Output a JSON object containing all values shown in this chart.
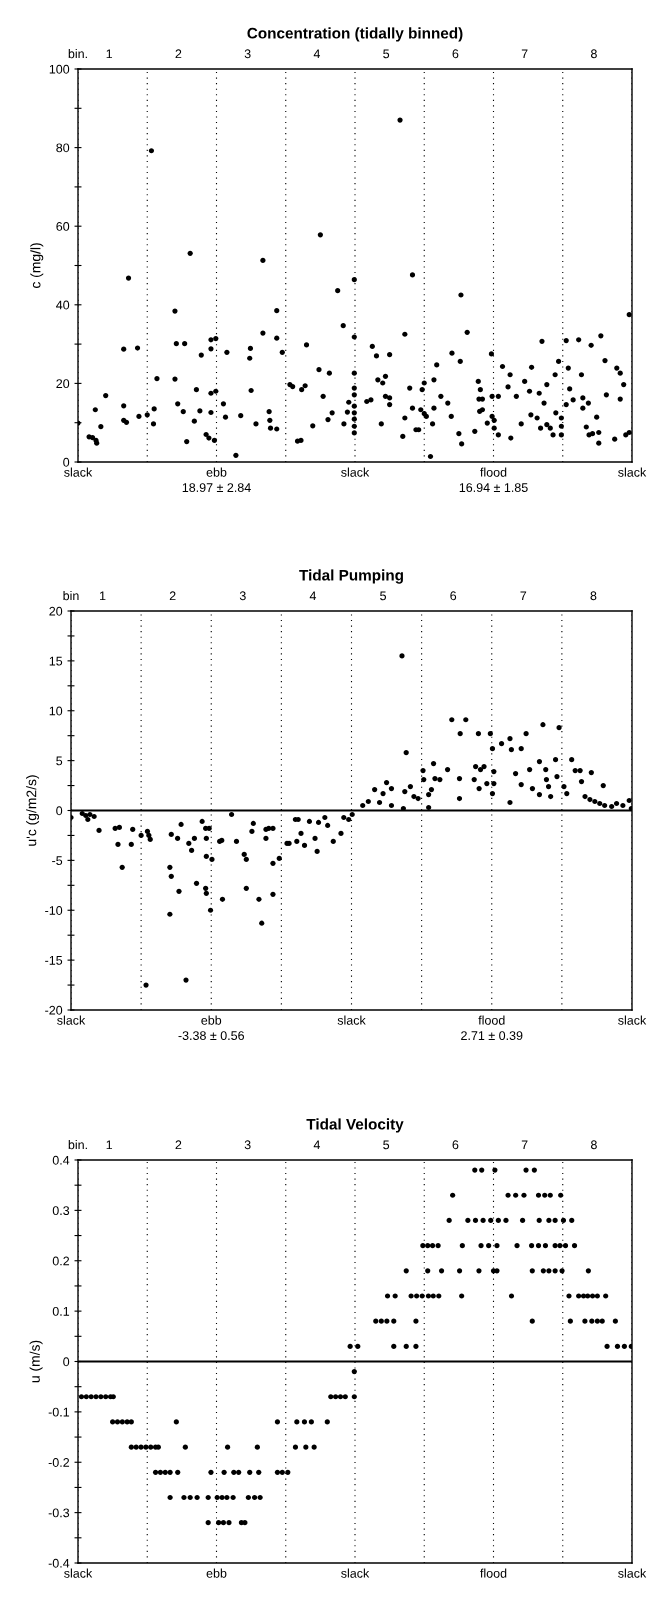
{
  "chart_data": [
    {
      "type": "scatter",
      "title": "Concentration (tidally binned)",
      "ylabel": "c (mg/l)",
      "color": "#000000",
      "marker": "circle",
      "xlim": [
        0.55,
        8.55
      ],
      "ref_lines": [
        {
          "axis": "x",
          "value": 0.55,
          "line_style": "dotted"
        },
        {
          "axis": "x",
          "value": 1.55,
          "line_style": "dotted"
        },
        {
          "axis": "x",
          "value": 2.55,
          "line_style": "dotted"
        },
        {
          "axis": "x",
          "value": 3.55,
          "line_style": "dotted"
        },
        {
          "axis": "x",
          "value": 4.55,
          "line_style": "dotted"
        },
        {
          "axis": "x",
          "value": 5.55,
          "line_style": "dotted"
        },
        {
          "axis": "x",
          "value": 6.55,
          "line_style": "dotted"
        },
        {
          "axis": "x",
          "value": 7.55,
          "line_style": "dotted"
        },
        {
          "axis": "x",
          "value": 8.55,
          "line_style": "dotted"
        }
      ],
      "xlabel": "bin.",
      "xticks": [
        1,
        2,
        3,
        4,
        5,
        6,
        7,
        8
      ],
      "ylim": [
        0,
        100
      ],
      "yticks": [
        0,
        {
          "value": 10,
          "label": null
        },
        20,
        {
          "value": 30,
          "label": null
        },
        40,
        {
          "value": 50,
          "label": null
        },
        60,
        {
          "value": 70,
          "label": null
        },
        80,
        {
          "value": 90,
          "label": null
        },
        100
      ],
      "annotations": [
        "slack",
        "ebb",
        "slack",
        "flood",
        "slack",
        "18.97 ± 2.84",
        "16.94 ± 1.85"
      ],
      "x": [
        0.55,
        0.71,
        0.76,
        0.81,
        0.82,
        0.8,
        0.88,
        0.95,
        1.21,
        1.21,
        1.21,
        1.25,
        1.28,
        1.41,
        1.43,
        1.55,
        1.61,
        1.65,
        1.64,
        1.69,
        1.95,
        1.97,
        2.09,
        1.95,
        1.99,
        2.07,
        2.12,
        2.17,
        2.23,
        2.26,
        2.31,
        2.33,
        2.4,
        2.44,
        2.52,
        2.47,
        2.47,
        2.54,
        2.47,
        2.54,
        2.47,
        2.65,
        2.68,
        2.7,
        2.83,
        2.9,
        3.03,
        3.04,
        3.05,
        3.12,
        3.22,
        3.22,
        3.31,
        3.32,
        3.33,
        3.42,
        3.42,
        3.42,
        3.5,
        3.61,
        3.65,
        3.72,
        3.77,
        3.78,
        3.83,
        3.85,
        3.94,
        4.03,
        4.05,
        4.09,
        4.16,
        4.18,
        4.22,
        4.3,
        4.38,
        4.39,
        4.44,
        4.46,
        4.54,
        4.54,
        4.54,
        4.54,
        4.54,
        4.54,
        4.54,
        4.54,
        4.54,
        4.54,
        4.72,
        4.78,
        4.8,
        4.86,
        4.88,
        4.93,
        4.95,
        4.99,
        4.99,
        5.05,
        5.05,
        5.05,
        5.2,
        5.24,
        5.27,
        5.27,
        5.34,
        5.38,
        5.38,
        5.43,
        5.47,
        5.5,
        5.55,
        5.58,
        5.52,
        5.55,
        5.69,
        5.67,
        5.69,
        5.64,
        5.73,
        5.79,
        5.89,
        5.94,
        5.95,
        6.05,
        6.07,
        6.08,
        6.09,
        6.17,
        6.28,
        6.33,
        6.36,
        6.39,
        6.34,
        6.35,
        6.39,
        6.46,
        6.52,
        6.53,
        6.62,
        6.53,
        6.56,
        6.56,
        6.62,
        6.68,
        6.76,
        6.79,
        6.88,
        6.8,
        6.95,
        7.0,
        7.07,
        7.1,
        7.09,
        7.18,
        7.21,
        7.23,
        7.25,
        7.28,
        7.32,
        7.32,
        7.37,
        7.41,
        7.44,
        7.49,
        7.45,
        7.53,
        7.53,
        7.53,
        7.6,
        7.78,
        7.63,
        7.65,
        7.6,
        7.7,
        7.82,
        7.84,
        7.92,
        7.84,
        7.89,
        7.93,
        7.98,
        7.96,
        8.04,
        8.07,
        8.07,
        8.1,
        8.16,
        8.18,
        8.3,
        8.33,
        8.38,
        8.38,
        8.43,
        8.46,
        8.51,
        8.51
      ],
      "values": [
        9.9,
        6.4,
        6.2,
        5.5,
        4.8,
        13.3,
        9,
        16.9,
        28.7,
        14.3,
        10.6,
        10.1,
        46.8,
        29,
        11.6,
        12,
        79.2,
        13.5,
        9.7,
        21.2,
        38.4,
        30.1,
        30.1,
        21.1,
        14.8,
        12.8,
        5.2,
        53.1,
        10.4,
        18.4,
        13,
        27.2,
        7,
        6.1,
        5.5,
        28.8,
        31.1,
        31.4,
        17.5,
        18,
        12.6,
        14.8,
        11.4,
        27.9,
        1.7,
        11.8,
        26.4,
        28.9,
        18.2,
        9.7,
        51.3,
        32.8,
        12.8,
        10.6,
        8.6,
        8.4,
        38.5,
        31.5,
        27.9,
        19.7,
        19.2,
        5.3,
        5.5,
        18.4,
        19.4,
        29.8,
        9.2,
        23.5,
        57.8,
        16.7,
        10.8,
        22.6,
        12.5,
        43.6,
        34.7,
        9.7,
        12.7,
        15.2,
        46.4,
        31.8,
        22.6,
        18.8,
        17.1,
        14.2,
        12.5,
        10.9,
        9.1,
        7.4,
        15.4,
        15.8,
        29.4,
        27,
        20.9,
        9.7,
        20.1,
        21.8,
        16.7,
        16.3,
        14.6,
        27.3,
        87,
        6.5,
        32.5,
        11.2,
        18.8,
        47.6,
        13.7,
        8.2,
        8.2,
        13.3,
        12.3,
        11.6,
        18.4,
        20.1,
        20.9,
        9.7,
        13.7,
        1.4,
        24.7,
        16.7,
        15,
        11.6,
        27.7,
        7.2,
        25.6,
        42.5,
        4.6,
        33,
        7.8,
        20.5,
        18.4,
        16,
        16,
        12.9,
        13.3,
        9.9,
        27.5,
        16.7,
        16.7,
        11.6,
        10.6,
        8.6,
        6.9,
        24.3,
        19.1,
        22.2,
        16.7,
        6.1,
        9.7,
        20.5,
        18,
        24.1,
        12,
        11.2,
        17.5,
        8.6,
        30.7,
        15,
        19.7,
        9.5,
        8.6,
        6.9,
        22.2,
        25.6,
        12.5,
        11.2,
        9.1,
        6.9,
        30.9,
        31.1,
        23.9,
        18.6,
        14.6,
        15.8,
        22.2,
        16.3,
        15,
        13.7,
        8.9,
        6.9,
        7.2,
        29.7,
        11.4,
        7.5,
        4.8,
        32.1,
        25.8,
        17.1,
        5.8,
        23.9,
        22.6,
        16,
        19.7,
        6.9,
        7.5,
        37.5
      ]
    },
    {
      "type": "scatter",
      "title": "Tidal Pumping",
      "ylabel": "u'c (g/m2/s)",
      "color": "#000000",
      "marker": "circle",
      "xlim": [
        0.55,
        8.55
      ],
      "xlabel": "bin",
      "xticks": [
        1,
        2,
        3,
        4,
        5,
        6,
        7,
        8
      ],
      "ylim": [
        -20,
        20
      ],
      "yticks": [
        -20,
        {
          "value": -17.5,
          "label": null
        },
        -15,
        {
          "value": -12.5,
          "label": null
        },
        -10,
        {
          "value": -7.5,
          "label": null
        },
        -5,
        {
          "value": -2.5,
          "label": null
        },
        0,
        {
          "value": 2.5,
          "label": null
        },
        5,
        {
          "value": 7.5,
          "label": null
        },
        10,
        {
          "value": 12.5,
          "label": null
        },
        15,
        {
          "value": 17.5,
          "label": null
        },
        20
      ],
      "ref_lines": [
        {
          "axis": "y",
          "value": 0
        },
        {
          "axis": "x",
          "value": 0.55,
          "line_style": "dotted"
        },
        {
          "axis": "x",
          "value": 1.55,
          "line_style": "dotted"
        },
        {
          "axis": "x",
          "value": 2.55,
          "line_style": "dotted"
        },
        {
          "axis": "x",
          "value": 3.55,
          "line_style": "dotted"
        },
        {
          "axis": "x",
          "value": 4.55,
          "line_style": "dotted"
        },
        {
          "axis": "x",
          "value": 5.55,
          "line_style": "dotted"
        },
        {
          "axis": "x",
          "value": 6.55,
          "line_style": "dotted"
        },
        {
          "axis": "x",
          "value": 7.55,
          "line_style": "dotted"
        },
        {
          "axis": "x",
          "value": 8.55,
          "line_style": "dotted"
        }
      ],
      "annotations": [
        "slack",
        "ebb",
        "slack",
        "flood",
        "slack",
        "-3.38 ± 0.56",
        "2.71 ± 0.39"
      ],
      "x": [
        0.55,
        0.71,
        0.76,
        0.79,
        0.82,
        0.88,
        0.95,
        1.18,
        1.24,
        1.22,
        1.28,
        1.41,
        1.43,
        1.55,
        1.64,
        1.66,
        1.68,
        1.62,
        1.96,
        1.98,
        1.96,
        1.98,
        2.07,
        2.12,
        2.09,
        2.19,
        2.23,
        2.31,
        2.27,
        2.34,
        2.42,
        2.47,
        2.52,
        2.48,
        2.47,
        2.48,
        2.48,
        2.56,
        2.54,
        2.67,
        2.7,
        2.71,
        2.84,
        2.91,
        3.02,
        3.05,
        3.05,
        3.15,
        3.13,
        3.23,
        3.27,
        3.33,
        3.33,
        3.37,
        3.43,
        3.43,
        3.43,
        3.52,
        3.63,
        3.66,
        3.75,
        3.79,
        3.77,
        3.83,
        3.88,
        3.95,
        4.03,
        4.06,
        4.08,
        4.17,
        4.21,
        4.29,
        4.4,
        4.44,
        4.51,
        4.56,
        4.71,
        4.79,
        4.88,
        4.95,
        5.0,
        5.05,
        5.12,
        5.12,
        5.27,
        5.29,
        5.33,
        5.31,
        5.39,
        5.44,
        5.5,
        5.57,
        5.58,
        5.65,
        5.65,
        5.69,
        5.72,
        5.74,
        5.81,
        5.92,
        5.98,
        6.09,
        6.1,
        6.09,
        6.18,
        6.3,
        6.32,
        6.39,
        6.44,
        6.37,
        6.36,
        6.48,
        6.53,
        6.56,
        6.58,
        6.56,
        6.58,
        6.69,
        6.81,
        6.83,
        6.97,
        6.81,
        6.89,
        6.97,
        7.04,
        7.09,
        7.13,
        7.23,
        7.23,
        7.28,
        7.32,
        7.33,
        7.36,
        7.39,
        7.46,
        7.48,
        7.51,
        7.58,
        7.62,
        7.69,
        7.74,
        7.81,
        7.83,
        7.97,
        7.88,
        7.95,
        8.02,
        8.09,
        8.16,
        8.14,
        8.26,
        8.33,
        8.42,
        8.51,
        8.54
      ],
      "values": [
        -0.7,
        -0.3,
        -0.5,
        -0.9,
        -0.4,
        -0.6,
        -2,
        -1.8,
        -1.7,
        -3.4,
        -5.7,
        -3.4,
        -1.9,
        -2.5,
        -2.1,
        -2.5,
        -2.9,
        -17.5,
        -5.7,
        -6.6,
        -10.4,
        -2.4,
        -2.8,
        -1.4,
        -8.1,
        -17,
        -3.3,
        -2.8,
        -4,
        -7.3,
        -1.1,
        -1.8,
        -1.8,
        -2.8,
        -7.8,
        -8.3,
        -4.6,
        -4.9,
        -10,
        -3.1,
        -3,
        -8.9,
        -0.4,
        -3.1,
        -4.4,
        -4.9,
        -7.8,
        -1.3,
        -2.1,
        -8.9,
        -11.3,
        -1.9,
        -2.8,
        -1.8,
        -1.8,
        -5.3,
        -8.4,
        -4.8,
        -3.3,
        -3.3,
        -0.9,
        -0.9,
        -3.1,
        -2.3,
        -3.5,
        -1.1,
        -2.8,
        -4.1,
        -1.2,
        -0.7,
        -1.5,
        -3.1,
        -2.3,
        -0.7,
        -0.9,
        -0.4,
        0.5,
        0.9,
        2.1,
        0.8,
        1.7,
        2.8,
        2.2,
        0.5,
        15.5,
        0.2,
        5.8,
        1.9,
        2.4,
        1.4,
        1.2,
        4,
        3.1,
        1.6,
        0.3,
        2.1,
        4.7,
        3.2,
        3.1,
        4.1,
        9.1,
        3.2,
        7.7,
        1.2,
        9.1,
        3.1,
        4.4,
        4.1,
        4.4,
        2.2,
        7.7,
        2.7,
        7.7,
        6.2,
        3.9,
        1.7,
        2.7,
        6.7,
        7.2,
        6.1,
        6.2,
        0.8,
        3.7,
        2.6,
        7.7,
        4.1,
        2.2,
        4.9,
        1.6,
        8.6,
        4.1,
        3.1,
        2.4,
        1.4,
        5.1,
        3.4,
        8.3,
        2.4,
        1.7,
        5.1,
        4,
        4,
        2.9,
        3.8,
        1.4,
        1.1,
        0.9,
        0.7,
        0.5,
        2.5,
        0.4,
        0.7,
        0.5,
        1.0,
        0.2
      ]
    },
    {
      "type": "scatter",
      "title": "Tidal Velocity",
      "ylabel": "u (m/s)",
      "color": "#000000",
      "marker": "circle",
      "xlim": [
        0.55,
        8.55
      ],
      "xlabel": "bin.",
      "xticks": [
        1,
        2,
        3,
        4,
        5,
        6,
        7,
        8
      ],
      "ylim": [
        -0.4,
        0.4
      ],
      "yticks": [
        -0.4,
        {
          "value": -0.35,
          "label": null
        },
        -0.3,
        {
          "value": -0.25,
          "label": null
        },
        -0.2,
        {
          "value": -0.15,
          "label": null
        },
        -0.1,
        {
          "value": -0.05,
          "label": null
        },
        0,
        {
          "value": 0.05,
          "label": null
        },
        0.1,
        {
          "value": 0.15,
          "label": null
        },
        0.2,
        {
          "value": 0.25,
          "label": null
        },
        0.3,
        {
          "value": 0.35,
          "label": null
        },
        0.4
      ],
      "ref_lines": [
        {
          "axis": "y",
          "value": 0
        },
        {
          "axis": "x",
          "value": 0.55,
          "line_style": "dotted"
        },
        {
          "axis": "x",
          "value": 1.55,
          "line_style": "dotted"
        },
        {
          "axis": "x",
          "value": 2.55,
          "line_style": "dotted"
        },
        {
          "axis": "x",
          "value": 3.55,
          "line_style": "dotted"
        },
        {
          "axis": "x",
          "value": 4.55,
          "line_style": "dotted"
        },
        {
          "axis": "x",
          "value": 5.55,
          "line_style": "dotted"
        },
        {
          "axis": "x",
          "value": 6.55,
          "line_style": "dotted"
        },
        {
          "axis": "x",
          "value": 7.55,
          "line_style": "dotted"
        },
        {
          "axis": "x",
          "value": 8.55,
          "line_style": "dotted"
        }
      ],
      "annotations": [
        "slack",
        "ebb",
        "slack",
        "flood",
        "slack"
      ],
      "x": [
        0.6,
        0.67,
        0.74,
        0.81,
        0.88,
        0.95,
        1.02,
        1.06,
        4.2,
        4.27,
        4.34,
        4.41,
        4.54,
        4.54,
        1.05,
        1.12,
        1.19,
        1.26,
        1.32,
        1.97,
        3.43,
        3.71,
        3.82,
        3.92,
        4.15,
        1.32,
        1.39,
        1.46,
        1.53,
        1.6,
        1.67,
        1.71,
        2.1,
        2.71,
        3.14,
        3.69,
        3.84,
        3.96,
        1.67,
        1.74,
        1.81,
        1.88,
        1.99,
        2.47,
        2.66,
        2.8,
        2.87,
        3.03,
        3.16,
        3.43,
        3.5,
        3.58,
        1.88,
        2.08,
        2.17,
        2.27,
        2.43,
        2.56,
        2.63,
        2.7,
        2.79,
        3.01,
        3.1,
        3.18,
        2.43,
        2.58,
        2.65,
        2.73,
        2.91,
        2.96,
        4.48,
        4.59,
        5.11,
        5.29,
        5.43,
        8.19,
        8.34,
        8.44,
        8.54,
        4.85,
        4.93,
        5.01,
        5.11,
        5.43,
        7.11,
        7.66,
        7.87,
        7.97,
        8.05,
        8.12,
        8.31,
        5.02,
        5.13,
        5.36,
        5.44,
        5.52,
        5.61,
        5.68,
        5.76,
        6.09,
        6.81,
        7.64,
        7.78,
        7.85,
        7.91,
        7.98,
        8.05,
        8.17,
        5.29,
        5.6,
        5.8,
        6.06,
        6.34,
        6.55,
        6.6,
        7.11,
        7.27,
        7.35,
        7.44,
        7.54,
        7.92,
        5.53,
        5.6,
        5.67,
        5.75,
        6.1,
        6.37,
        6.48,
        6.6,
        6.89,
        7.1,
        7.2,
        7.3,
        7.44,
        7.51,
        7.59,
        7.72,
        5.91,
        6.18,
        6.29,
        6.4,
        6.51,
        6.62,
        6.73,
        6.97,
        7.21,
        7.35,
        7.44,
        7.56,
        7.68,
        5.96,
        6.76,
        6.87,
        6.99,
        7.2,
        7.29,
        7.37,
        7.52,
        6.28,
        6.38,
        6.57,
        7.02,
        7.14
      ],
      "values": [
        -0.07,
        -0.07,
        -0.07,
        -0.07,
        -0.07,
        -0.07,
        -0.07,
        -0.07,
        -0.07,
        -0.07,
        -0.07,
        -0.07,
        -0.07,
        -0.02,
        -0.12,
        -0.12,
        -0.12,
        -0.12,
        -0.12,
        -0.12,
        -0.12,
        -0.12,
        -0.12,
        -0.12,
        -0.12,
        -0.17,
        -0.17,
        -0.17,
        -0.17,
        -0.17,
        -0.17,
        -0.17,
        -0.17,
        -0.17,
        -0.17,
        -0.17,
        -0.17,
        -0.17,
        -0.22,
        -0.22,
        -0.22,
        -0.22,
        -0.22,
        -0.22,
        -0.22,
        -0.22,
        -0.22,
        -0.22,
        -0.22,
        -0.22,
        -0.22,
        -0.22,
        -0.27,
        -0.27,
        -0.27,
        -0.27,
        -0.27,
        -0.27,
        -0.27,
        -0.27,
        -0.27,
        -0.27,
        -0.27,
        -0.27,
        -0.32,
        -0.32,
        -0.32,
        -0.32,
        -0.32,
        -0.32,
        0.03,
        0.03,
        0.03,
        0.03,
        0.03,
        0.03,
        0.03,
        0.03,
        0.03,
        0.08,
        0.08,
        0.08,
        0.08,
        0.08,
        0.08,
        0.08,
        0.08,
        0.08,
        0.08,
        0.08,
        0.08,
        0.13,
        0.13,
        0.13,
        0.13,
        0.13,
        0.13,
        0.13,
        0.13,
        0.13,
        0.13,
        0.13,
        0.13,
        0.13,
        0.13,
        0.13,
        0.13,
        0.13,
        0.18,
        0.18,
        0.18,
        0.18,
        0.18,
        0.18,
        0.18,
        0.18,
        0.18,
        0.18,
        0.18,
        0.18,
        0.18,
        0.23,
        0.23,
        0.23,
        0.23,
        0.23,
        0.23,
        0.23,
        0.23,
        0.23,
        0.23,
        0.23,
        0.23,
        0.23,
        0.23,
        0.23,
        0.23,
        0.28,
        0.28,
        0.28,
        0.28,
        0.28,
        0.28,
        0.28,
        0.28,
        0.28,
        0.28,
        0.28,
        0.28,
        0.28,
        0.33,
        0.33,
        0.33,
        0.33,
        0.33,
        0.33,
        0.33,
        0.33,
        0.38,
        0.38,
        0.38,
        0.38,
        0.38
      ]
    }
  ]
}
